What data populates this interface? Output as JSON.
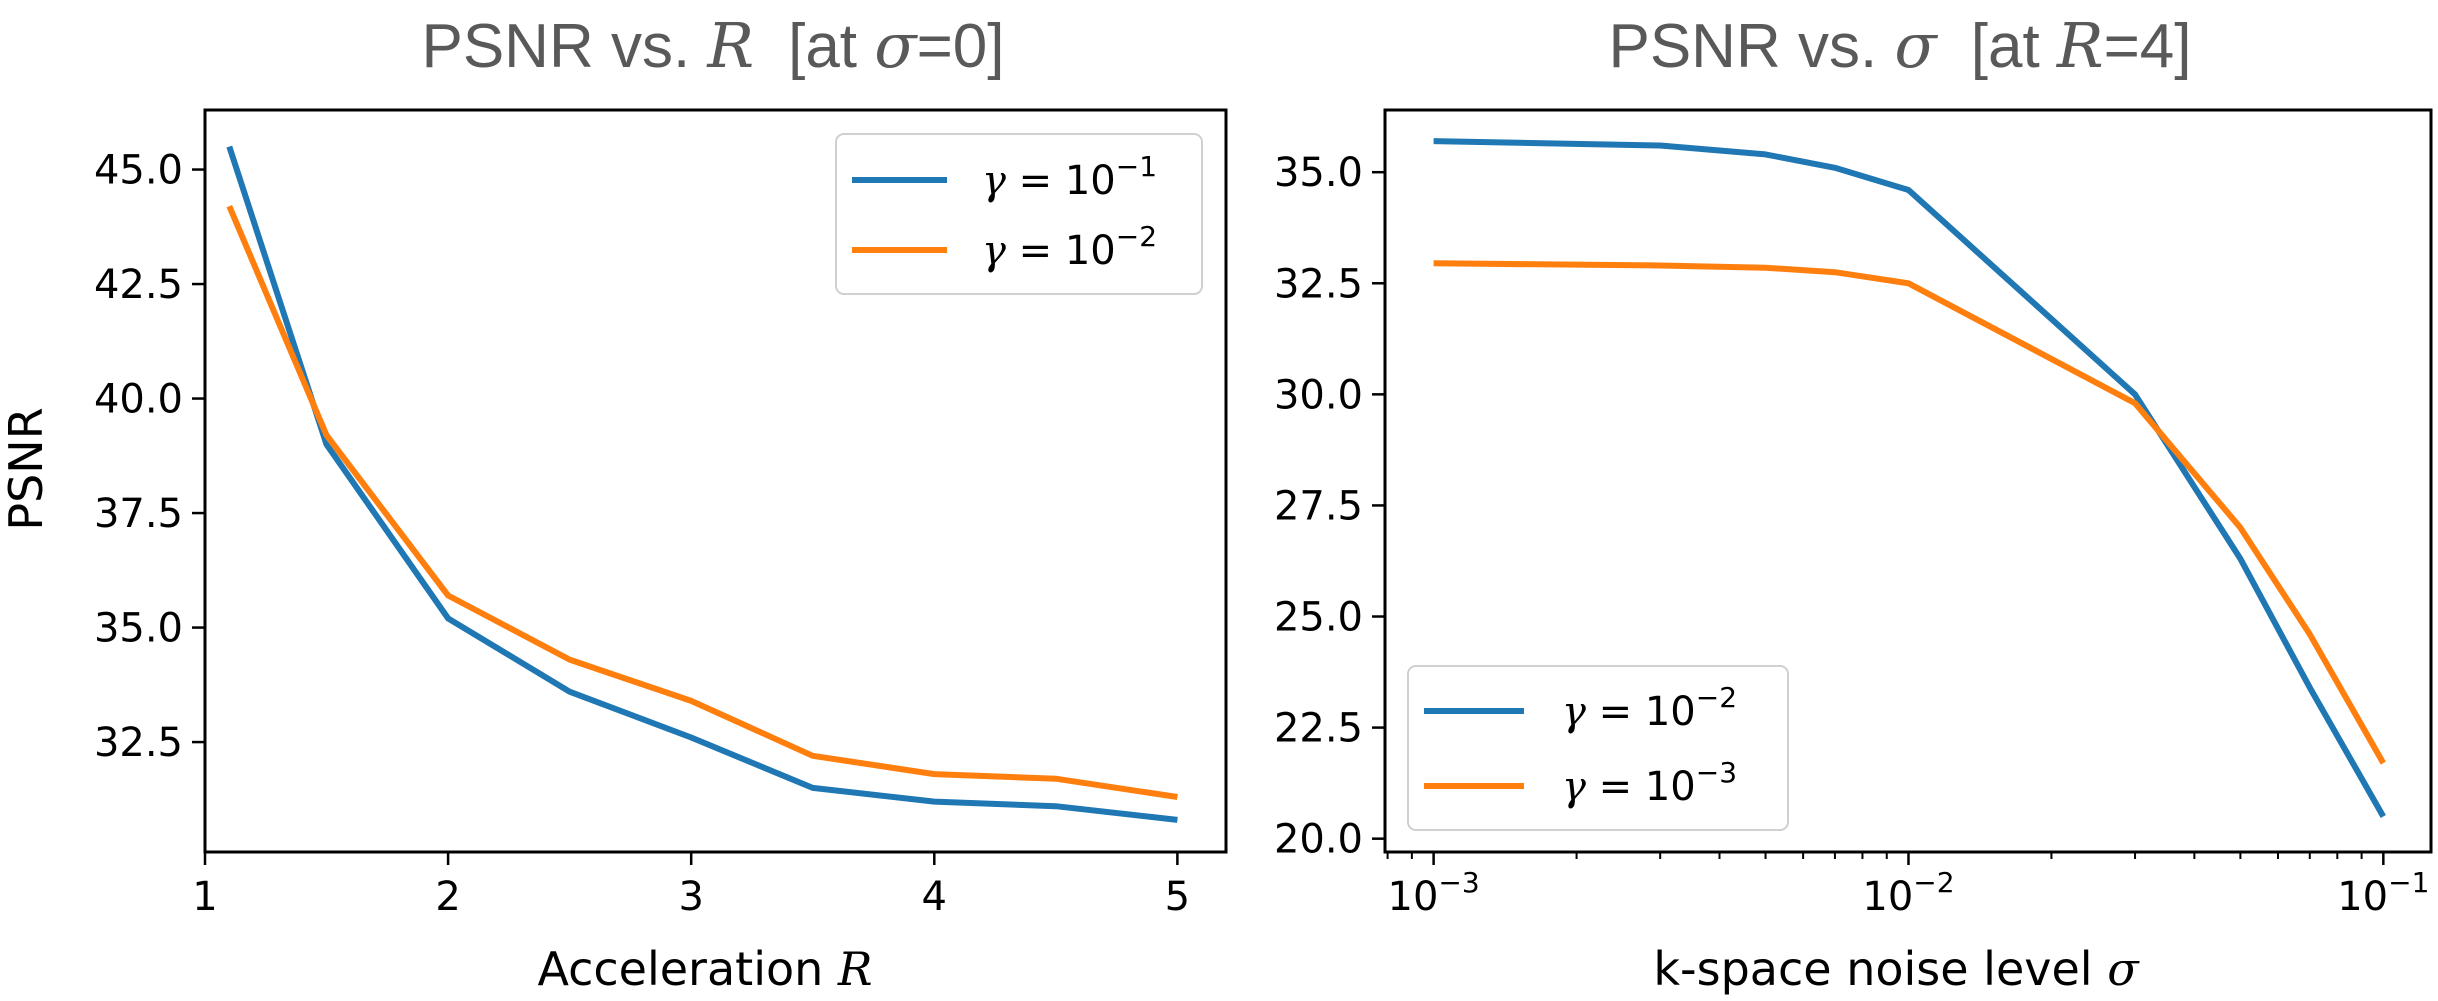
{
  "chart_data": [
    {
      "type": "line",
      "title": "PSNR vs. R [at σ=0]",
      "title_parts": [
        "PSNR vs. ",
        "R",
        "[at ",
        "σ",
        "=0]"
      ],
      "xlabel": "Acceleration R",
      "xlabel_parts": [
        "Acceleration ",
        "R"
      ],
      "ylabel": "PSNR",
      "xscale": "linear",
      "xlim": [
        1.0,
        5.2
      ],
      "ylim": [
        30.1,
        46.3
      ],
      "xticks": [
        1,
        2,
        3,
        4,
        5
      ],
      "xtick_labels": [
        "1",
        "2",
        "3",
        "4",
        "5"
      ],
      "yticks": [
        32.5,
        35.0,
        37.5,
        40.0,
        42.5,
        45.0
      ],
      "ytick_labels": [
        "32.5",
        "35.0",
        "37.5",
        "40.0",
        "42.5",
        "45.0"
      ],
      "legend_position": "upper right",
      "series": [
        {
          "name": "γ = 10^-1",
          "label_base": "γ",
          "label_eq": " = 10",
          "label_exp": "−1",
          "color": "#1f77b4",
          "x": [
            1.1,
            1.5,
            2.0,
            2.5,
            3.0,
            3.5,
            4.0,
            4.5,
            5.0
          ],
          "y": [
            45.5,
            39.0,
            35.2,
            33.6,
            32.6,
            31.5,
            31.2,
            31.1,
            30.8
          ]
        },
        {
          "name": "γ = 10^-2",
          "label_base": "γ",
          "label_eq": " = 10",
          "label_exp": "−2",
          "color": "#ff7f0e",
          "x": [
            1.1,
            1.5,
            2.0,
            2.5,
            3.0,
            3.5,
            4.0,
            4.5,
            5.0
          ],
          "y": [
            44.2,
            39.2,
            35.7,
            34.3,
            33.4,
            32.2,
            31.8,
            31.7,
            31.3
          ]
        }
      ]
    },
    {
      "type": "line",
      "title": "PSNR vs. σ [at R=4]",
      "title_parts": [
        "PSNR vs. ",
        "σ",
        "[at ",
        "R",
        "=4]"
      ],
      "xlabel": "k-space noise level σ",
      "xlabel_parts": [
        "k-space noise level ",
        "σ"
      ],
      "ylabel": "",
      "xscale": "log",
      "xlim": [
        0.00079,
        0.126
      ],
      "ylim": [
        19.7,
        36.4
      ],
      "xticks": [
        0.001,
        0.01,
        0.1
      ],
      "xtick_labels": [
        {
          "base": "10",
          "exp": "−3"
        },
        {
          "base": "10",
          "exp": "−2"
        },
        {
          "base": "10",
          "exp": "−1"
        }
      ],
      "yticks": [
        20.0,
        22.5,
        25.0,
        27.5,
        30.0,
        32.5,
        35.0
      ],
      "ytick_labels": [
        "20.0",
        "22.5",
        "25.0",
        "27.5",
        "30.0",
        "32.5",
        "35.0"
      ],
      "legend_position": "lower left",
      "series": [
        {
          "name": "γ = 10^-2",
          "label_base": "γ",
          "label_eq": " = 10",
          "label_exp": "−2",
          "color": "#1f77b4",
          "x": [
            0.001,
            0.003,
            0.005,
            0.007,
            0.01,
            0.03,
            0.05,
            0.07,
            0.1
          ],
          "y": [
            35.7,
            35.6,
            35.4,
            35.1,
            34.6,
            30.0,
            26.3,
            23.4,
            20.5
          ]
        },
        {
          "name": "γ = 10^-3",
          "label_base": "γ",
          "label_eq": " = 10",
          "label_exp": "−3",
          "color": "#ff7f0e",
          "x": [
            0.001,
            0.003,
            0.005,
            0.007,
            0.01,
            0.03,
            0.05,
            0.07,
            0.1
          ],
          "y": [
            32.95,
            32.9,
            32.85,
            32.75,
            32.5,
            29.8,
            27.0,
            24.6,
            21.7
          ]
        }
      ]
    }
  ]
}
